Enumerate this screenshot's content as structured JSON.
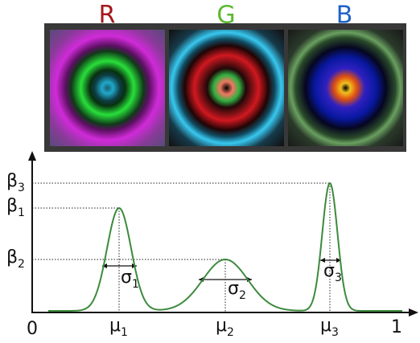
{
  "channels": [
    {
      "label": "R",
      "color": "#a3191b"
    },
    {
      "label": "G",
      "color": "#5cb82e"
    },
    {
      "label": "B",
      "color": "#1e62c8"
    }
  ],
  "plot": {
    "x_start": "0",
    "x_end": "1",
    "peaks": [
      {
        "mu": "μ",
        "mu_sub": "1",
        "beta": "β",
        "beta_sub": "1",
        "sigma": "σ",
        "sigma_sub": "1"
      },
      {
        "mu": "μ",
        "mu_sub": "2",
        "beta": "β",
        "beta_sub": "2",
        "sigma": "σ",
        "sigma_sub": "2"
      },
      {
        "mu": "μ",
        "mu_sub": "3",
        "beta": "β",
        "beta_sub": "3",
        "sigma": "σ",
        "sigma_sub": "3"
      }
    ]
  }
}
